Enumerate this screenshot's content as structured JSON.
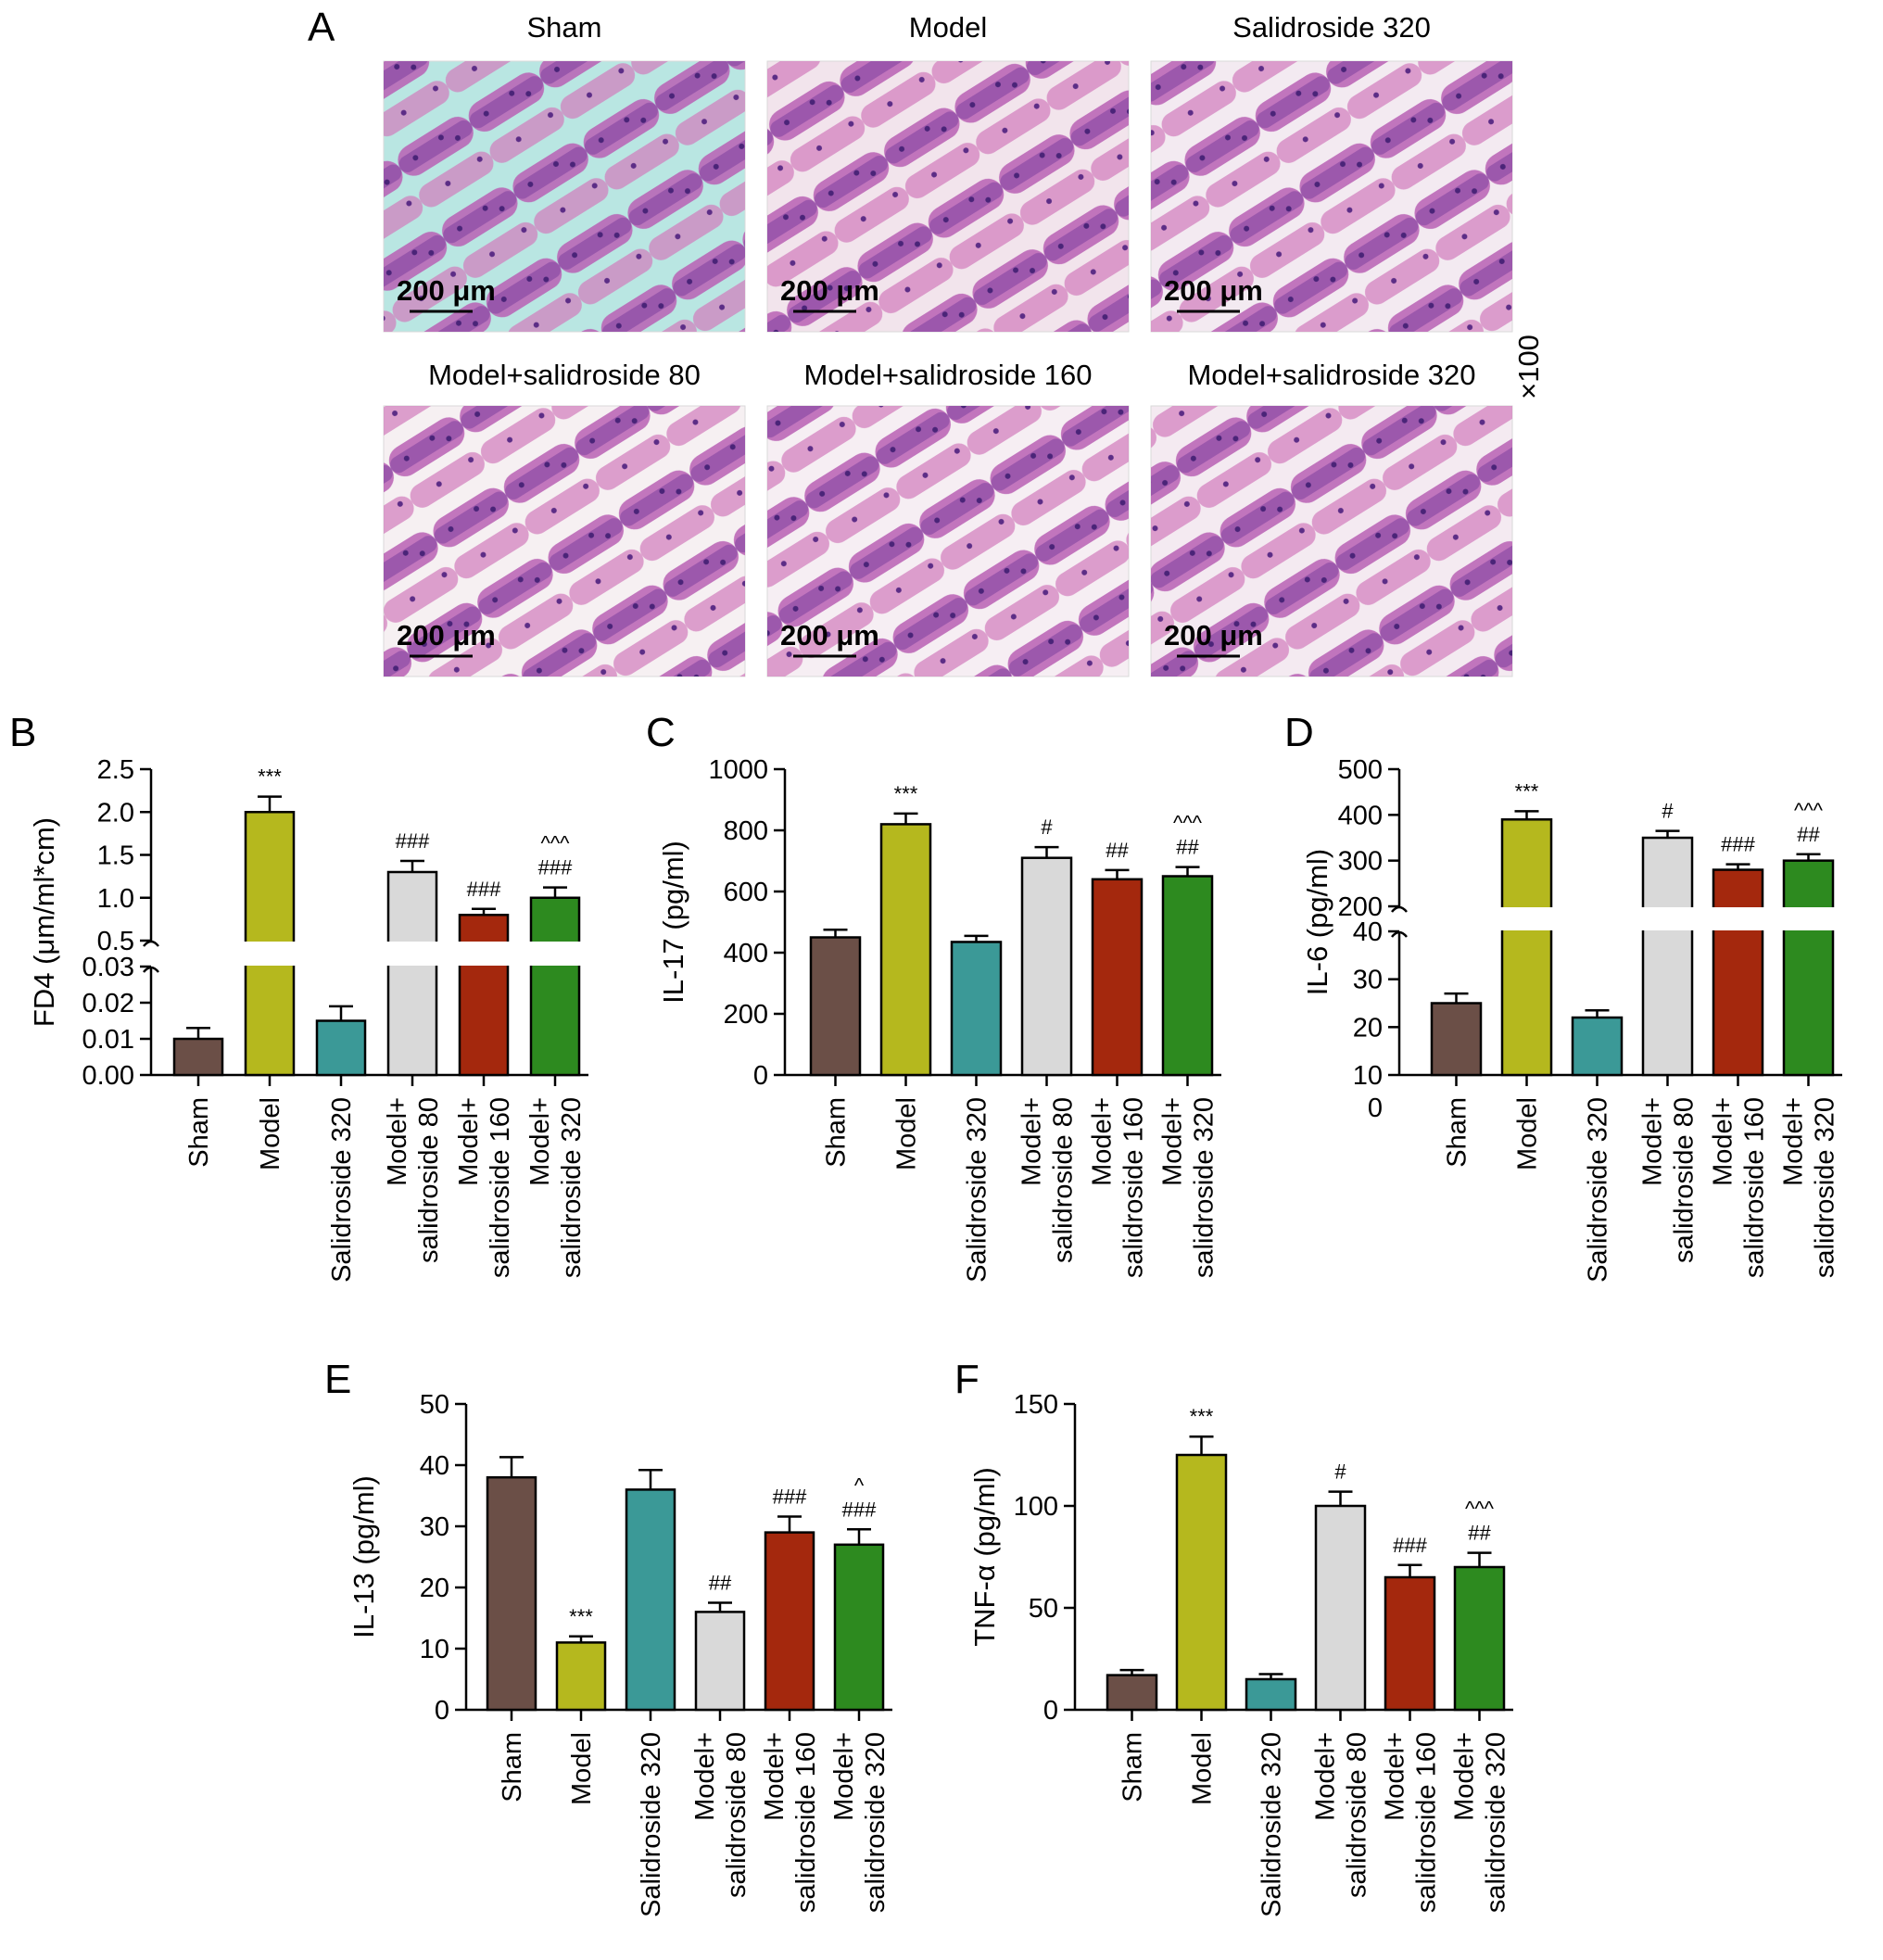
{
  "figure": {
    "magnification": "×100",
    "scale_bar_label": "200 μm"
  },
  "panel_a": {
    "letter": "A",
    "micrographs": [
      {
        "title": "Sham",
        "tone": "#b9e6e2"
      },
      {
        "title": "Model",
        "tone": "#f2e4ec"
      },
      {
        "title": "Salidroside 320",
        "tone": "#f3eaf1"
      },
      {
        "title": "Model+salidroside 80",
        "tone": "#f6f0f2"
      },
      {
        "title": "Model+salidroside 160",
        "tone": "#f6eef3"
      },
      {
        "title": "Model+salidroside 320",
        "tone": "#f4eaf1"
      }
    ]
  },
  "chart_data": [
    {
      "panel": "B",
      "type": "bar",
      "ylabel": "FD4 (μm/ml*cm)",
      "categories": [
        [
          "Sham"
        ],
        [
          "Model"
        ],
        [
          "Salidroside 320"
        ],
        [
          "Model+",
          "salidroside 80"
        ],
        [
          "Model+",
          "salidroside 160"
        ],
        [
          "Model+",
          "salidroside 320"
        ]
      ],
      "values": [
        0.01,
        2.0,
        0.015,
        1.3,
        0.8,
        1.0
      ],
      "errors": [
        0.003,
        0.18,
        0.004,
        0.13,
        0.07,
        0.12
      ],
      "colors": [
        "#6b4f47",
        "#b5b81e",
        "#3b9997",
        "#d9d9d9",
        "#a4280d",
        "#2d8a1f"
      ],
      "annotations": [
        [],
        [
          "***"
        ],
        [],
        [
          "###"
        ],
        [
          "###"
        ],
        [
          "###",
          "^^^"
        ]
      ],
      "broken_axis": true,
      "lower_ylim": [
        0,
        0.03
      ],
      "lower_ticks": [
        "0.00",
        "0.01",
        "0.02",
        "0.03"
      ],
      "upper_ylim": [
        0.5,
        2.5
      ],
      "upper_ticks": [
        "0.5",
        "1.0",
        "1.5",
        "2.0",
        "2.5"
      ]
    },
    {
      "panel": "C",
      "type": "bar",
      "ylabel": "IL-17 (pg/ml)",
      "categories": [
        [
          "Sham"
        ],
        [
          "Model"
        ],
        [
          "Salidroside 320"
        ],
        [
          "Model+",
          "salidroside 80"
        ],
        [
          "Model+",
          "salidroside 160"
        ],
        [
          "Model+",
          "salidroside 320"
        ]
      ],
      "values": [
        450,
        820,
        435,
        710,
        640,
        650
      ],
      "errors": [
        25,
        35,
        20,
        35,
        30,
        30
      ],
      "colors": [
        "#6b4f47",
        "#b5b81e",
        "#3b9997",
        "#d9d9d9",
        "#a4280d",
        "#2d8a1f"
      ],
      "annotations": [
        [],
        [
          "***"
        ],
        [],
        [
          "#"
        ],
        [
          "##"
        ],
        [
          "##",
          "^^^"
        ]
      ],
      "broken_axis": false,
      "ylim": [
        0,
        1000
      ],
      "ticks": [
        "0",
        "200",
        "400",
        "600",
        "800",
        "1000"
      ]
    },
    {
      "panel": "D",
      "type": "bar",
      "ylabel": "IL-6 (pg/ml)",
      "categories": [
        [
          "Sham"
        ],
        [
          "Model"
        ],
        [
          "Salidroside 320"
        ],
        [
          "Model+",
          "salidroside 80"
        ],
        [
          "Model+",
          "salidroside 160"
        ],
        [
          "Model+",
          "salidroside 320"
        ]
      ],
      "values": [
        25,
        390,
        22,
        350,
        280,
        300
      ],
      "errors": [
        2,
        18,
        1.5,
        15,
        12,
        14
      ],
      "colors": [
        "#6b4f47",
        "#b5b81e",
        "#3b9997",
        "#d9d9d9",
        "#a4280d",
        "#2d8a1f"
      ],
      "annotations": [
        [],
        [
          "***"
        ],
        [],
        [
          "#"
        ],
        [
          "###"
        ],
        [
          "##",
          "^^^"
        ]
      ],
      "broken_axis": true,
      "zero_label": "0",
      "lower_ylim": [
        10,
        40
      ],
      "lower_ticks": [
        "10",
        "20",
        "30",
        "40"
      ],
      "upper_ylim": [
        200,
        500
      ],
      "upper_ticks": [
        "200",
        "300",
        "400",
        "500"
      ]
    },
    {
      "panel": "E",
      "type": "bar",
      "ylabel": "IL-13 (pg/ml)",
      "categories": [
        [
          "Sham"
        ],
        [
          "Model"
        ],
        [
          "Salidroside 320"
        ],
        [
          "Model+",
          "salidroside 80"
        ],
        [
          "Model+",
          "salidroside 160"
        ],
        [
          "Model+",
          "salidroside 320"
        ]
      ],
      "values": [
        38,
        11,
        36,
        16,
        29,
        27
      ],
      "errors": [
        3.3,
        1,
        3.2,
        1.5,
        2.6,
        2.5
      ],
      "colors": [
        "#6b4f47",
        "#b5b81e",
        "#3b9997",
        "#d9d9d9",
        "#a4280d",
        "#2d8a1f"
      ],
      "annotations": [
        [],
        [
          "***"
        ],
        [],
        [
          "##"
        ],
        [
          "###"
        ],
        [
          "###",
          "^"
        ]
      ],
      "broken_axis": false,
      "ylim": [
        0,
        50
      ],
      "ticks": [
        "0",
        "10",
        "20",
        "30",
        "40",
        "50"
      ]
    },
    {
      "panel": "F",
      "type": "bar",
      "ylabel": "TNF-α (pg/ml)",
      "categories": [
        [
          "Sham"
        ],
        [
          "Model"
        ],
        [
          "Salidroside 320"
        ],
        [
          "Model+",
          "salidroside 80"
        ],
        [
          "Model+",
          "salidroside 160"
        ],
        [
          "Model+",
          "salidroside 320"
        ]
      ],
      "values": [
        17,
        125,
        15,
        100,
        65,
        70
      ],
      "errors": [
        2.5,
        9,
        2.5,
        7,
        6,
        7
      ],
      "colors": [
        "#6b4f47",
        "#b5b81e",
        "#3b9997",
        "#d9d9d9",
        "#a4280d",
        "#2d8a1f"
      ],
      "annotations": [
        [],
        [
          "***"
        ],
        [],
        [
          "#"
        ],
        [
          "###"
        ],
        [
          "##",
          "^^^"
        ]
      ],
      "broken_axis": false,
      "ylim": [
        0,
        150
      ],
      "ticks": [
        "0",
        "50",
        "100",
        "150"
      ]
    }
  ]
}
